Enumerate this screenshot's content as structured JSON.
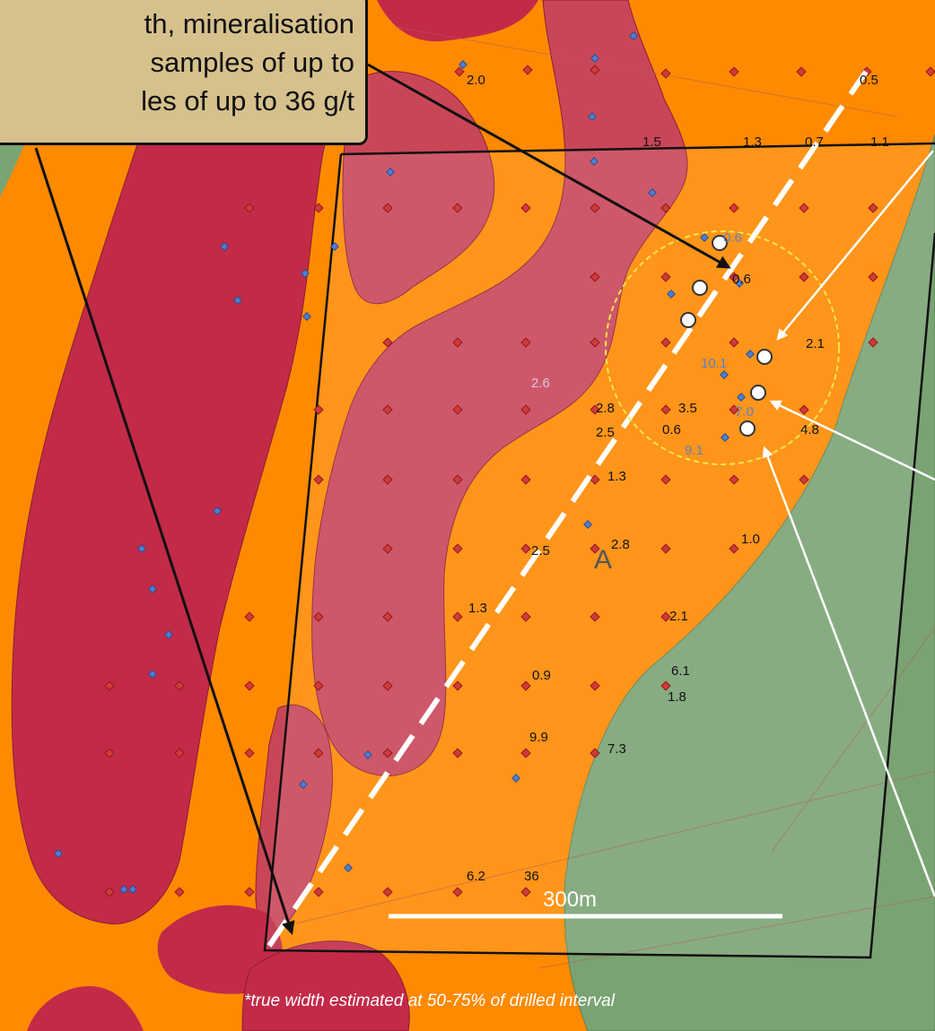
{
  "callout": {
    "lines": [
      "th, mineralisation",
      "samples of up to",
      "les of up to 36 g/t"
    ]
  },
  "colors": {
    "host_orange": "#ff8a00",
    "intrusive_red": "#c22a48",
    "green_unit": "#7aa373",
    "zone_overlay": "#ffffff",
    "callout_bg": "#d6c18d",
    "target_circle": "#f5e64a"
  },
  "map": {
    "area_label": "A",
    "scale_label": "300m",
    "footnote": "*true width estimated at 50-75% of drilled interval",
    "assay_labels": [
      {
        "id": "a01",
        "text": "2.0",
        "color": "dark"
      },
      {
        "id": "a02",
        "text": "0.5",
        "color": "dark"
      },
      {
        "id": "a03",
        "text": "1.5",
        "color": "dark"
      },
      {
        "id": "a04",
        "text": "1.3",
        "color": "dark"
      },
      {
        "id": "a05",
        "text": "0.7",
        "color": "dark"
      },
      {
        "id": "a06",
        "text": "1.1",
        "color": "dark"
      },
      {
        "id": "a07",
        "text": "0.6",
        "color": "blue"
      },
      {
        "id": "a08",
        "text": "0.6",
        "color": "dark"
      },
      {
        "id": "a09",
        "text": "2.1",
        "color": "dark"
      },
      {
        "id": "a10",
        "text": "10.1",
        "color": "blue"
      },
      {
        "id": "a11",
        "text": "2.6",
        "color": "lilac"
      },
      {
        "id": "a12",
        "text": "2.8",
        "color": "dark"
      },
      {
        "id": "a13",
        "text": "2.5",
        "color": "dark"
      },
      {
        "id": "a14",
        "text": "3.5",
        "color": "dark"
      },
      {
        "id": "a15",
        "text": "0.6",
        "color": "dark"
      },
      {
        "id": "a16",
        "text": "7.0",
        "color": "blue"
      },
      {
        "id": "a17",
        "text": "4.8",
        "color": "dark"
      },
      {
        "id": "a18",
        "text": "9.1",
        "color": "blue"
      },
      {
        "id": "a19",
        "text": "1.3",
        "color": "dark"
      },
      {
        "id": "a20",
        "text": "2.5",
        "color": "dark"
      },
      {
        "id": "a21",
        "text": "2.8",
        "color": "dark"
      },
      {
        "id": "a22",
        "text": "1.0",
        "color": "dark"
      },
      {
        "id": "a23",
        "text": "1.3",
        "color": "dark"
      },
      {
        "id": "a24",
        "text": "2.1",
        "color": "dark"
      },
      {
        "id": "a25",
        "text": "0.9",
        "color": "dark"
      },
      {
        "id": "a26",
        "text": "6.1",
        "color": "dark"
      },
      {
        "id": "a27",
        "text": "1.8",
        "color": "dark"
      },
      {
        "id": "a28",
        "text": "9.9",
        "color": "dark"
      },
      {
        "id": "a29",
        "text": "7.3",
        "color": "dark"
      },
      {
        "id": "a30",
        "text": "6.2",
        "color": "dark"
      },
      {
        "id": "a31",
        "text": "36",
        "color": "dark"
      }
    ]
  }
}
